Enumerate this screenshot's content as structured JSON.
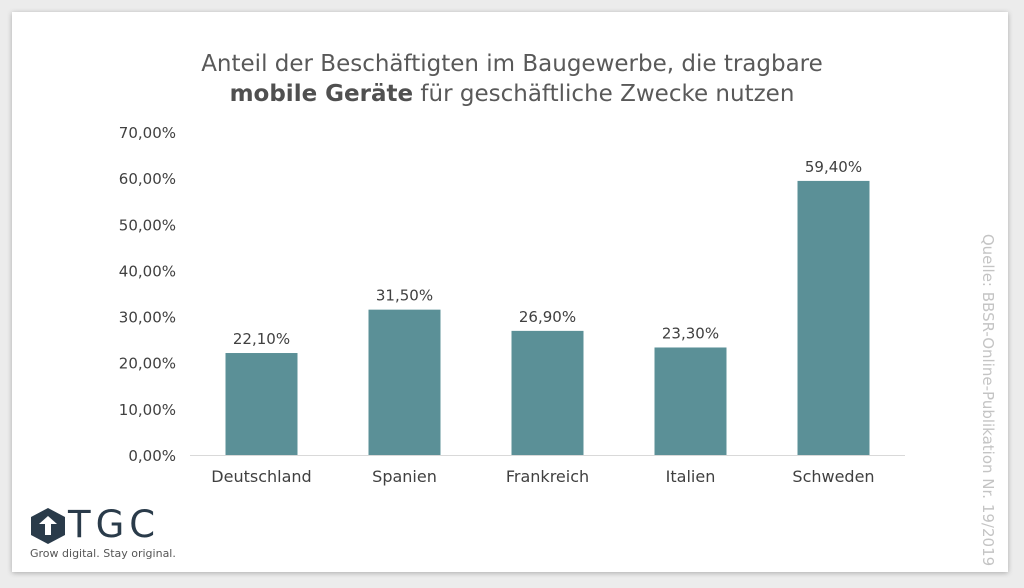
{
  "header": {
    "title_line1": "Anteil der Beschäftigten im Baugewerbe, die tragbare",
    "title_line2_bold": "mobile Geräte",
    "title_line2_rest": " für geschäftliche Zwecke nutzen"
  },
  "source": "Quelle: BBSR-Online-Publikation Nr. 19/2019",
  "logo": {
    "text": "TGC",
    "tagline": "Grow digital. Stay original."
  },
  "colors": {
    "bar": "#5b9097",
    "axis_text": "#404040",
    "axis_line": "#d9d9d9"
  },
  "chart_data": {
    "type": "bar",
    "title": "Anteil der Beschäftigten im Baugewerbe, die tragbare mobile Geräte für geschäftliche Zwecke nutzen",
    "categories": [
      "Deutschland",
      "Spanien",
      "Frankreich",
      "Italien",
      "Schweden"
    ],
    "values": [
      22.1,
      31.5,
      26.9,
      23.3,
      59.4
    ],
    "data_labels": [
      "22,10%",
      "31,50%",
      "26,90%",
      "23,30%",
      "59,40%"
    ],
    "ylim": [
      0,
      70
    ],
    "yticks": [
      0,
      10,
      20,
      30,
      40,
      50,
      60,
      70
    ],
    "ytick_labels": [
      "0,00%",
      "10,00%",
      "20,00%",
      "30,00%",
      "40,00%",
      "50,00%",
      "60,00%",
      "70,00%"
    ],
    "grid": false,
    "legend": "none"
  }
}
